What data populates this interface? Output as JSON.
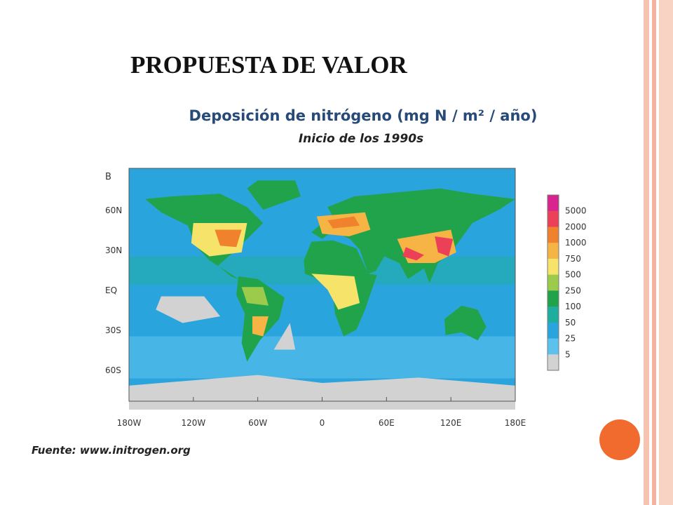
{
  "slide": {
    "title": "PROPUESTA DE VALOR",
    "figure": {
      "title": "Deposición de nitrógeno (mg N / m² / año)",
      "subtitle": "Inicio de los 1990s",
      "panel_label": "B",
      "lat_labels": [
        "60N",
        "30N",
        "EQ",
        "30S",
        "60S"
      ],
      "lon_labels": [
        "180W",
        "120W",
        "60W",
        "0",
        "60E",
        "120E",
        "180E"
      ],
      "colorbar": {
        "ticks": [
          5000,
          2000,
          1000,
          750,
          500,
          250,
          100,
          50,
          25,
          5
        ],
        "colors": [
          "#d9248f",
          "#ec3f58",
          "#f0822e",
          "#f6b445",
          "#f5e36a",
          "#9ccb4b",
          "#21a34b",
          "#1fae9e",
          "#2aa4dc",
          "#5cc1ec",
          "#d2d2d2"
        ]
      }
    },
    "source": "Fuente: www.initrogen.org"
  }
}
